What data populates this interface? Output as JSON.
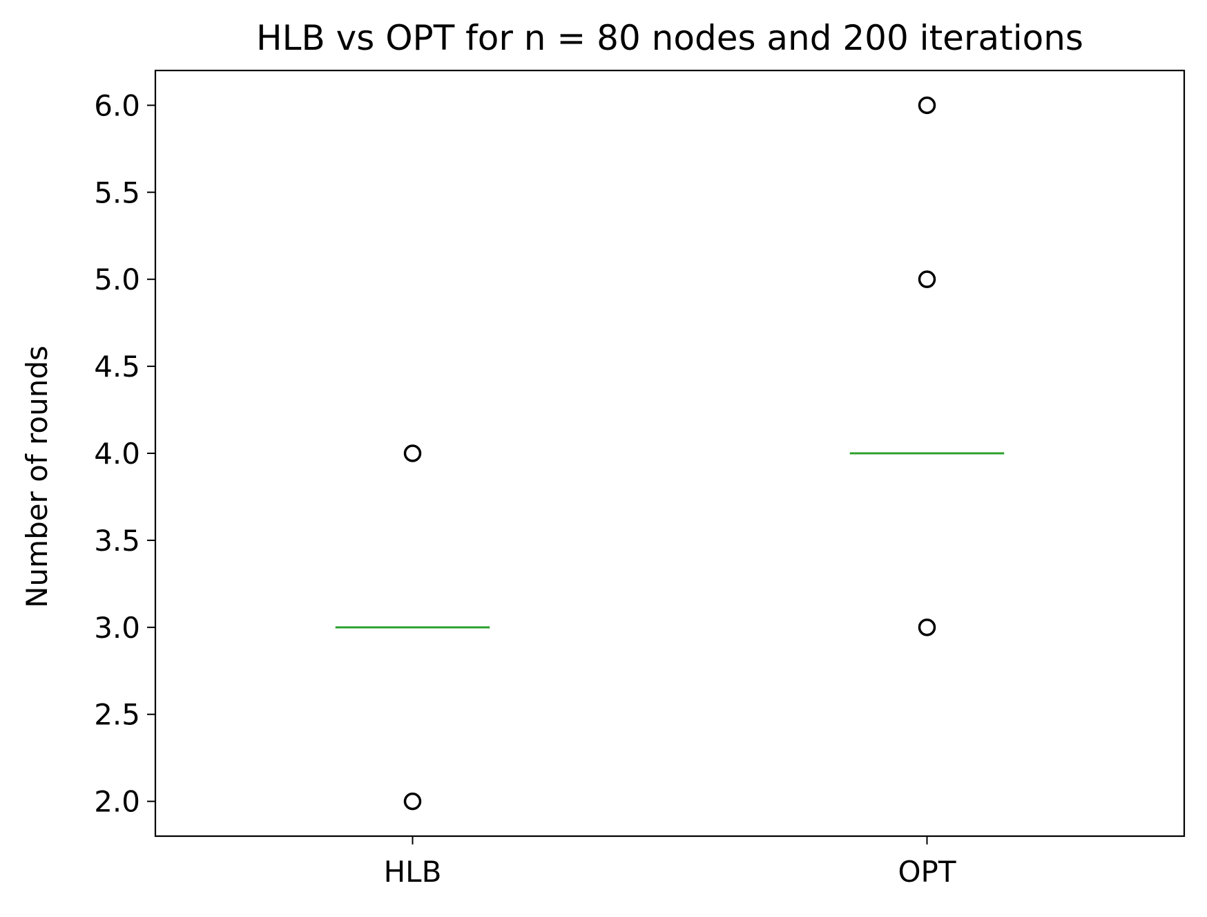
{
  "chart_data": {
    "type": "box",
    "title": "HLB vs OPT for n = 80 nodes and 200 iterations",
    "xlabel": "",
    "ylabel": "Number of rounds",
    "categories": [
      "HLB",
      "OPT"
    ],
    "ylim": [
      1.8,
      6.2
    ],
    "yticks": [
      2.0,
      2.5,
      3.0,
      3.5,
      4.0,
      4.5,
      5.0,
      5.5,
      6.0
    ],
    "ytick_labels": [
      "2.0",
      "2.5",
      "3.0",
      "3.5",
      "4.0",
      "4.5",
      "5.0",
      "5.5",
      "6.0"
    ],
    "grid": false,
    "boxes": [
      {
        "name": "HLB",
        "median": 3.0,
        "outliers": [
          2.0,
          4.0
        ]
      },
      {
        "name": "OPT",
        "median": 4.0,
        "outliers": [
          3.0,
          5.0,
          6.0
        ]
      }
    ],
    "colors": {
      "median": "#2ca02c",
      "outlier": "#000000",
      "axes": "#000000"
    }
  }
}
